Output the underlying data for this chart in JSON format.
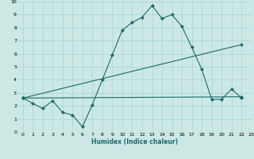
{
  "title": "",
  "xlabel": "Humidex (Indice chaleur)",
  "xlim": [
    -0.5,
    23
  ],
  "ylim": [
    0,
    10
  ],
  "xticks": [
    0,
    1,
    2,
    3,
    4,
    5,
    6,
    7,
    8,
    9,
    10,
    11,
    12,
    13,
    14,
    15,
    16,
    17,
    18,
    19,
    20,
    21,
    22,
    23
  ],
  "yticks": [
    0,
    1,
    2,
    3,
    4,
    5,
    6,
    7,
    8,
    9,
    10
  ],
  "bg_color": "#cce8e5",
  "grid_color": "#a8d4d0",
  "line_color": "#1a6b6a",
  "series": [
    {
      "x": [
        0,
        1,
        2,
        3,
        4,
        5,
        6,
        7,
        8,
        9,
        10,
        11,
        12,
        13,
        14,
        15,
        16,
        17,
        18,
        19,
        20,
        21,
        22
      ],
      "y": [
        2.6,
        2.2,
        1.8,
        2.4,
        1.5,
        1.3,
        0.4,
        2.1,
        4.0,
        5.9,
        7.8,
        8.4,
        8.8,
        9.7,
        8.7,
        9.0,
        8.1,
        6.5,
        4.8,
        2.5,
        2.5,
        3.3,
        2.6
      ]
    },
    {
      "x": [
        0,
        22
      ],
      "y": [
        2.6,
        6.7
      ]
    },
    {
      "x": [
        0,
        22
      ],
      "y": [
        2.6,
        2.7
      ]
    }
  ]
}
